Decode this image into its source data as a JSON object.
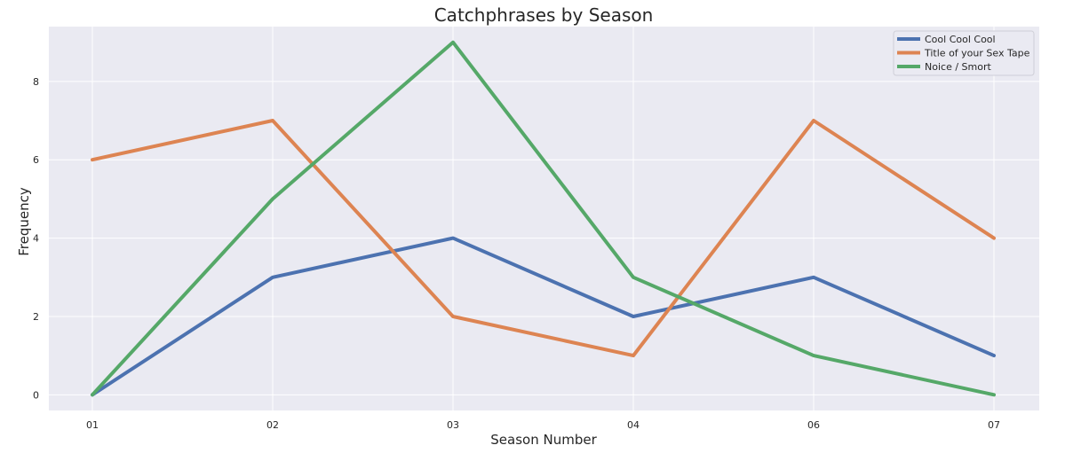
{
  "chart_data": {
    "type": "line",
    "title": "Catchphrases by Season",
    "xlabel": "Season Number",
    "ylabel": "Frequency",
    "categories": [
      "01",
      "02",
      "03",
      "04",
      "06",
      "07"
    ],
    "ylim": [
      -0.4,
      9.4
    ],
    "yticks": [
      0,
      2,
      4,
      6,
      8
    ],
    "grid": true,
    "legend_position": "top-right",
    "series": [
      {
        "name": "Cool Cool Cool",
        "color": "#4c72b0",
        "values": [
          0,
          3,
          4,
          2,
          3,
          1
        ]
      },
      {
        "name": "Title of your Sex Tape",
        "color": "#dd8452",
        "values": [
          6,
          7,
          2,
          1,
          7,
          4
        ]
      },
      {
        "name": "Noice / Smort",
        "color": "#55a868",
        "values": [
          0,
          5,
          9,
          3,
          1,
          0
        ]
      }
    ]
  }
}
